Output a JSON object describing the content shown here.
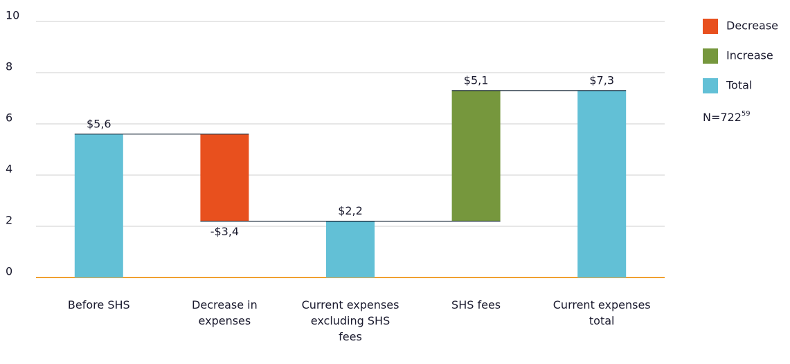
{
  "chart_data": {
    "type": "waterfall",
    "categories": [
      "Before SHS",
      "Decrease in expenses",
      "Current expenses excluding SHS fees",
      "SHS fees",
      "Current expenses total"
    ],
    "values": [
      5.6,
      -3.4,
      2.2,
      5.1,
      7.3
    ],
    "value_labels": [
      "$5,6",
      "-$3,4",
      "$2,2",
      "$5,1",
      "$7,3"
    ],
    "point_kind": [
      "Total",
      "Decrease",
      "Total",
      "Increase",
      "Total"
    ],
    "legend": [
      {
        "name": "Decrease",
        "color": "#e8501e"
      },
      {
        "name": "Increase",
        "color": "#76973d"
      },
      {
        "name": "Total",
        "color": "#62c0d6"
      }
    ],
    "note": "N=722",
    "note_sup": "59",
    "ylim": [
      0,
      10
    ],
    "yticks": [
      0,
      2,
      4,
      6,
      8,
      10
    ],
    "grid": true
  }
}
